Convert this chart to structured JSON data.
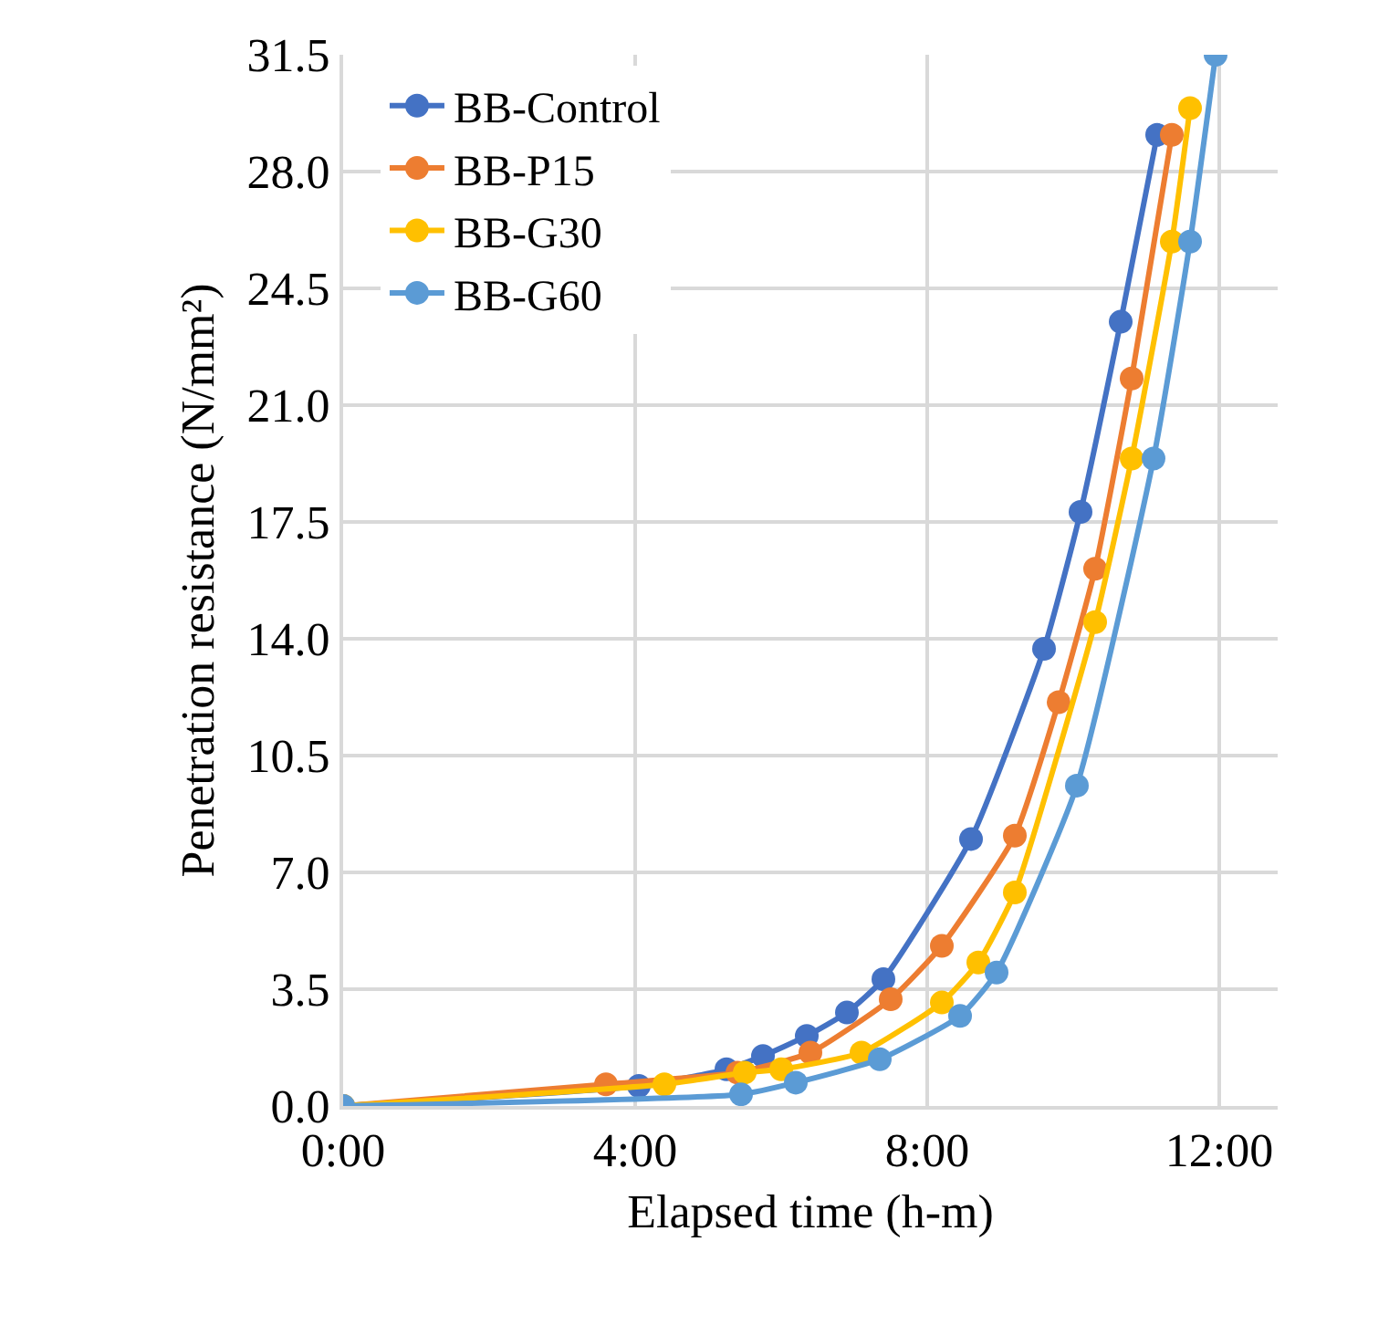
{
  "chart_data": {
    "type": "line",
    "xlabel": "Elapsed time (h-m)",
    "ylabel": "Penetration resistance (N/mm²)",
    "xlim": [
      0,
      12.8
    ],
    "xticks": [
      {
        "value": 0,
        "label": "0:00"
      },
      {
        "value": 4,
        "label": "4:00"
      },
      {
        "value": 8,
        "label": "8:00"
      },
      {
        "value": 12,
        "label": "12:00"
      }
    ],
    "ylim": [
      0,
      31.5
    ],
    "yticks": [
      {
        "value": 0,
        "label": "0.0"
      },
      {
        "value": 3.5,
        "label": "3.5"
      },
      {
        "value": 7,
        "label": "7.0"
      },
      {
        "value": 10.5,
        "label": "10.5"
      },
      {
        "value": 14,
        "label": "14.0"
      },
      {
        "value": 17.5,
        "label": "17.5"
      },
      {
        "value": 21,
        "label": "21.0"
      },
      {
        "value": 24.5,
        "label": "24.5"
      },
      {
        "value": 28,
        "label": "28.0"
      },
      {
        "value": 31.5,
        "label": "31.5"
      }
    ],
    "grid": true,
    "legend": "top left",
    "marker": "circle",
    "line_style": "solid",
    "series": [
      {
        "name": "BB-Control",
        "color": "#4472c4",
        "x": [
          0,
          4.05,
          5.25,
          5.75,
          6.35,
          6.9,
          7.4,
          8.6,
          9.6,
          10.1,
          10.65,
          11.15
        ],
        "values": [
          0,
          0.6,
          1.1,
          1.5,
          2.1,
          2.8,
          3.8,
          8.0,
          13.7,
          17.8,
          23.5,
          29.1
        ]
      },
      {
        "name": "BB-P15",
        "color": "#ed7d31",
        "x": [
          0,
          3.6,
          5.4,
          6.4,
          7.5,
          8.2,
          9.2,
          9.8,
          10.3,
          10.8,
          11.35
        ],
        "values": [
          0,
          0.65,
          1.0,
          1.6,
          3.2,
          4.8,
          8.1,
          12.1,
          16.1,
          21.8,
          29.1
        ]
      },
      {
        "name": "BB-G30",
        "color": "#ffc000",
        "x": [
          0,
          4.4,
          5.5,
          6.0,
          7.1,
          8.2,
          8.7,
          9.2,
          10.3,
          10.8,
          11.35,
          11.6
        ],
        "values": [
          0,
          0.65,
          1.0,
          1.1,
          1.6,
          3.1,
          4.3,
          6.4,
          14.5,
          19.4,
          25.9,
          29.9
        ]
      },
      {
        "name": "BB-G60",
        "color": "#5b9bd5",
        "x": [
          0,
          5.45,
          6.2,
          7.35,
          8.45,
          8.95,
          10.05,
          11.1,
          11.6,
          11.95
        ],
        "values": [
          0,
          0.35,
          0.7,
          1.4,
          2.7,
          4.0,
          9.6,
          19.4,
          25.9,
          31.5
        ]
      }
    ]
  }
}
